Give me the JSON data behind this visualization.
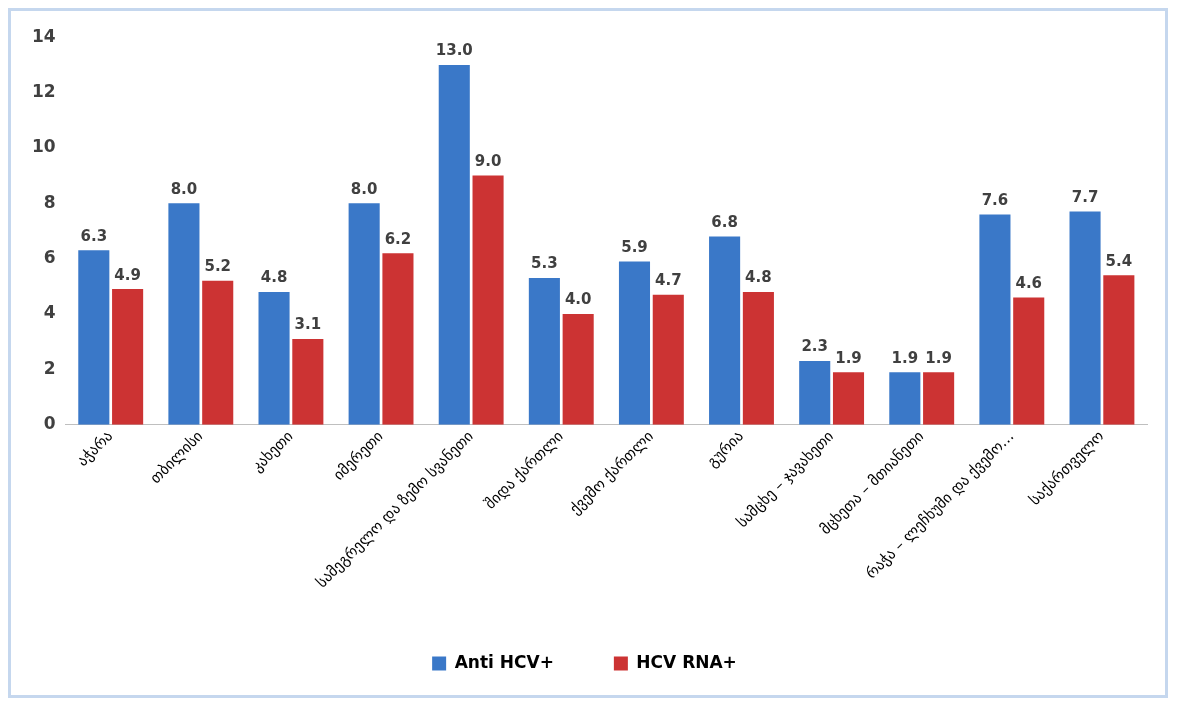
{
  "chart_data": {
    "type": "bar",
    "categories": [
      "აჭარა",
      "თბილისი",
      "კახეთი",
      "იმერეთი",
      "სამეგრელო და ზემო სვანეთი",
      "შიდა ქართლი",
      "ქვემო ქართლი",
      "გურია",
      "სამცხე – ჯავახეთი",
      "მცხეთა – მთიანეთი",
      "რაჭა – ლეჩხუმი და ქვემო…",
      "საქართველო"
    ],
    "series": [
      {
        "name": "Anti HCV+",
        "color": "#3a78c8",
        "values": [
          6.3,
          8.0,
          4.8,
          8.0,
          13.0,
          5.3,
          5.9,
          6.8,
          2.3,
          1.9,
          7.6,
          7.7
        ],
        "value_labels": [
          "6.3",
          "8.0",
          "4.8",
          "8.0",
          "13.0",
          "5.3",
          "5.9",
          "6.8",
          "2.3",
          "1.9",
          "7.6",
          "7.7"
        ]
      },
      {
        "name": "HCV RNA+",
        "color": "#cc3333",
        "values": [
          4.9,
          5.2,
          3.1,
          6.2,
          9.0,
          4.0,
          4.7,
          4.8,
          1.9,
          1.9,
          4.6,
          5.4
        ],
        "value_labels": [
          "4.9",
          "5.2",
          "3.1",
          "6.2",
          "9.0",
          "4.0",
          "4.7",
          "4.8",
          "1.9",
          "1.9",
          "4.6",
          "5.4"
        ]
      }
    ],
    "ylim": [
      0,
      14
    ],
    "yticks": [
      0,
      2,
      4,
      6,
      8,
      10,
      12,
      14
    ],
    "grid": false,
    "legend": "bottom"
  }
}
